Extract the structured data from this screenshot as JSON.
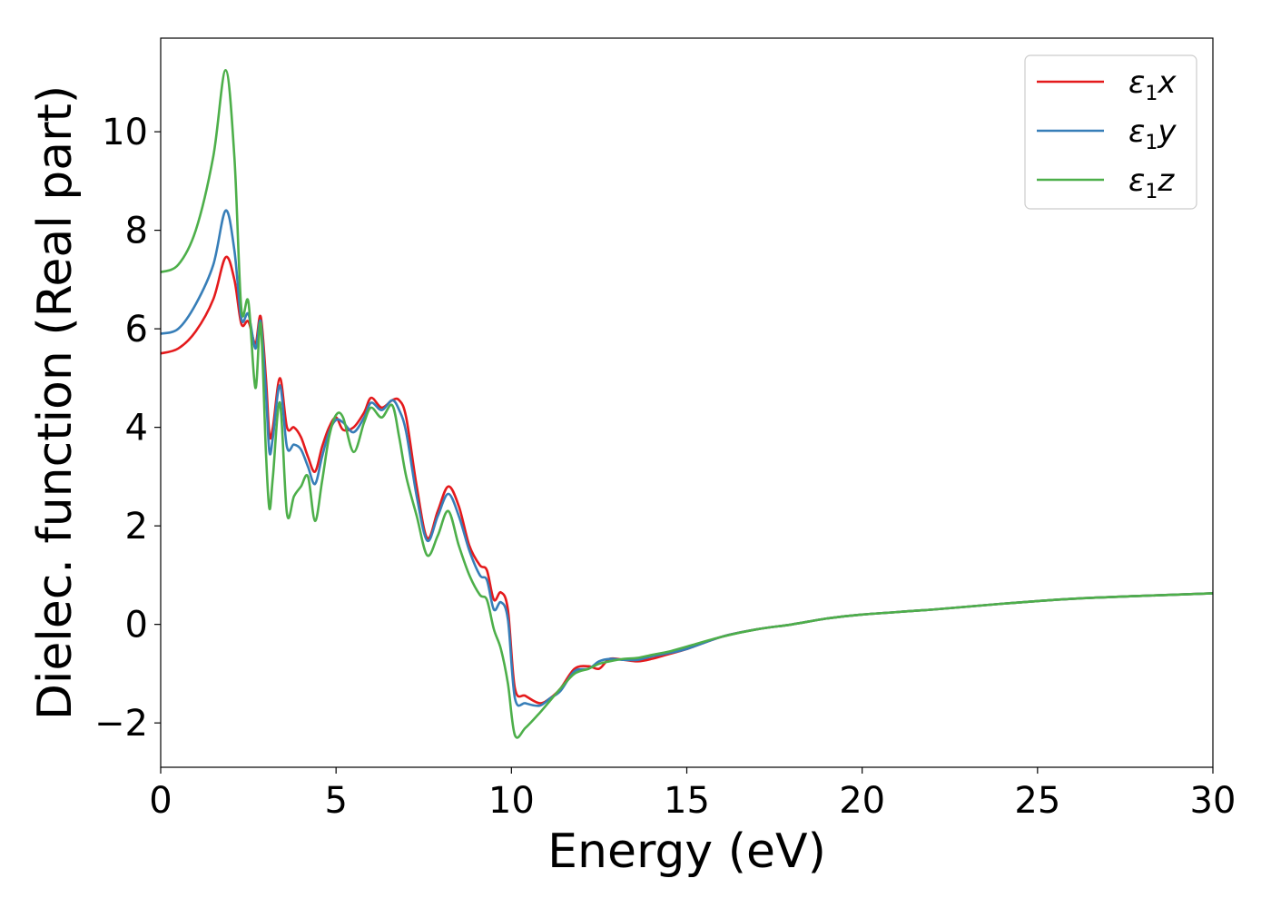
{
  "chart_data": {
    "type": "line",
    "xlabel": "Energy (eV)",
    "ylabel": "Dielec. function (Real part)",
    "xlim": [
      0,
      30
    ],
    "ylim": [
      -2.9,
      11.9
    ],
    "xticks": [
      0,
      5,
      10,
      15,
      20,
      25,
      30
    ],
    "xtick_labels": [
      "0",
      "5",
      "10",
      "15",
      "20",
      "25",
      "30"
    ],
    "yticks": [
      -2,
      0,
      2,
      4,
      6,
      8,
      10
    ],
    "ytick_labels": [
      "−2",
      "0",
      "2",
      "4",
      "6",
      "8",
      "10"
    ],
    "grid": false,
    "legend_position": "top-right",
    "series": [
      {
        "name": "ε₁x",
        "label_base": "ε",
        "label_sub": "1",
        "label_axis": "x",
        "color": "#e41a1c",
        "x": [
          0,
          0.5,
          1.0,
          1.5,
          1.85,
          2.1,
          2.3,
          2.5,
          2.7,
          2.85,
          3.0,
          3.1,
          3.2,
          3.4,
          3.6,
          3.8,
          4.0,
          4.2,
          4.4,
          4.6,
          4.8,
          5.0,
          5.2,
          5.5,
          5.8,
          6.0,
          6.3,
          6.6,
          6.8,
          7.0,
          7.3,
          7.6,
          7.9,
          8.2,
          8.5,
          8.8,
          9.1,
          9.3,
          9.5,
          9.7,
          9.9,
          10.1,
          10.4,
          10.8,
          11.1,
          11.4,
          11.8,
          12.2,
          12.5,
          12.8,
          13.2,
          13.6,
          14.0,
          14.5,
          15.0,
          16.0,
          17.0,
          18.0,
          19.0,
          20.0,
          22.0,
          24.0,
          26.0,
          28.0,
          30.0
        ],
        "values": [
          5.5,
          5.6,
          5.95,
          6.6,
          7.45,
          7.0,
          6.1,
          6.15,
          5.7,
          6.25,
          5.0,
          3.85,
          4.0,
          5.0,
          4.0,
          4.0,
          3.8,
          3.4,
          3.1,
          3.6,
          4.0,
          4.2,
          3.95,
          4.0,
          4.3,
          4.6,
          4.4,
          4.55,
          4.55,
          4.2,
          2.8,
          1.75,
          2.3,
          2.8,
          2.4,
          1.6,
          1.2,
          1.1,
          0.5,
          0.65,
          0.3,
          -1.3,
          -1.45,
          -1.6,
          -1.5,
          -1.3,
          -0.9,
          -0.85,
          -0.9,
          -0.7,
          -0.72,
          -0.75,
          -0.7,
          -0.6,
          -0.5,
          -0.25,
          -0.1,
          0.0,
          0.12,
          0.2,
          0.3,
          0.42,
          0.52,
          0.58,
          0.63
        ]
      },
      {
        "name": "ε₁y",
        "label_base": "ε",
        "label_sub": "1",
        "label_axis": "y",
        "color": "#377eb8",
        "x": [
          0,
          0.5,
          1.0,
          1.5,
          1.85,
          2.1,
          2.3,
          2.5,
          2.7,
          2.85,
          3.0,
          3.1,
          3.2,
          3.4,
          3.6,
          3.8,
          4.0,
          4.2,
          4.4,
          4.6,
          4.8,
          5.0,
          5.2,
          5.5,
          5.8,
          6.0,
          6.3,
          6.6,
          6.8,
          7.0,
          7.3,
          7.6,
          7.9,
          8.2,
          8.5,
          8.8,
          9.1,
          9.3,
          9.5,
          9.7,
          9.9,
          10.1,
          10.4,
          10.8,
          11.1,
          11.4,
          11.8,
          12.2,
          12.5,
          12.8,
          13.2,
          13.6,
          14.0,
          14.5,
          15.0,
          16.0,
          17.0,
          18.0,
          19.0,
          20.0,
          22.0,
          24.0,
          26.0,
          28.0,
          30.0
        ],
        "values": [
          5.9,
          6.0,
          6.5,
          7.3,
          8.4,
          7.6,
          6.2,
          6.3,
          5.6,
          6.15,
          4.7,
          3.5,
          3.8,
          4.85,
          3.6,
          3.65,
          3.55,
          3.2,
          2.85,
          3.4,
          3.9,
          4.15,
          4.1,
          3.9,
          4.2,
          4.5,
          4.35,
          4.55,
          4.35,
          3.9,
          2.6,
          1.7,
          2.2,
          2.65,
          2.2,
          1.5,
          1.0,
          0.9,
          0.3,
          0.45,
          0.1,
          -1.5,
          -1.6,
          -1.65,
          -1.5,
          -1.35,
          -0.95,
          -0.9,
          -0.75,
          -0.7,
          -0.72,
          -0.72,
          -0.65,
          -0.58,
          -0.5,
          -0.25,
          -0.1,
          0.0,
          0.12,
          0.2,
          0.3,
          0.42,
          0.52,
          0.58,
          0.63
        ]
      },
      {
        "name": "ε₁z",
        "label_base": "ε",
        "label_sub": "1",
        "label_axis": "z",
        "color": "#4daf4a",
        "x": [
          0,
          0.5,
          1.0,
          1.5,
          1.85,
          2.1,
          2.3,
          2.5,
          2.7,
          2.85,
          3.0,
          3.1,
          3.2,
          3.4,
          3.6,
          3.8,
          4.0,
          4.2,
          4.4,
          4.6,
          4.8,
          5.0,
          5.2,
          5.5,
          5.8,
          6.0,
          6.3,
          6.6,
          6.8,
          7.0,
          7.3,
          7.6,
          7.9,
          8.2,
          8.5,
          8.8,
          9.1,
          9.3,
          9.5,
          9.7,
          9.9,
          10.1,
          10.4,
          10.8,
          11.1,
          11.4,
          11.8,
          12.2,
          12.5,
          12.8,
          13.2,
          13.6,
          14.0,
          14.5,
          15.0,
          16.0,
          17.0,
          18.0,
          19.0,
          20.0,
          22.0,
          24.0,
          26.0,
          28.0,
          30.0
        ],
        "values": [
          7.15,
          7.3,
          8.0,
          9.5,
          11.25,
          9.5,
          6.4,
          6.55,
          4.8,
          6.1,
          3.5,
          2.35,
          3.0,
          4.5,
          2.25,
          2.6,
          2.8,
          3.0,
          2.1,
          2.9,
          3.8,
          4.25,
          4.2,
          3.5,
          4.1,
          4.4,
          4.2,
          4.45,
          3.8,
          3.0,
          2.2,
          1.4,
          1.8,
          2.3,
          1.6,
          1.0,
          0.6,
          0.5,
          -0.1,
          -0.5,
          -1.2,
          -2.25,
          -2.1,
          -1.8,
          -1.55,
          -1.3,
          -1.0,
          -0.9,
          -0.8,
          -0.75,
          -0.7,
          -0.68,
          -0.62,
          -0.55,
          -0.45,
          -0.25,
          -0.1,
          0.0,
          0.12,
          0.2,
          0.3,
          0.42,
          0.52,
          0.58,
          0.63
        ]
      }
    ]
  }
}
